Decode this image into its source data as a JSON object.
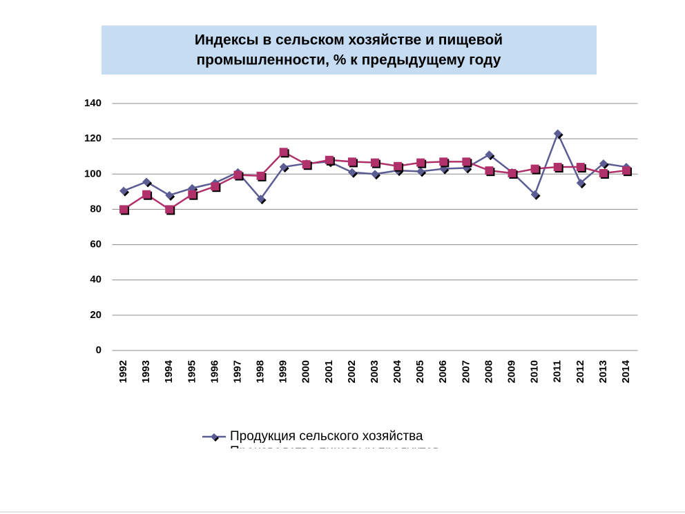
{
  "chart_data": {
    "type": "line",
    "title": [
      "Индексы в сельском хозяйстве и пищевой",
      "промышленности, % к предыдущему году"
    ],
    "categories": [
      "1992",
      "1993",
      "1994",
      "1995",
      "1996",
      "1997",
      "1998",
      "1999",
      "2000",
      "2001",
      "2002",
      "2003",
      "2004",
      "2005",
      "2006",
      "2007",
      "2008",
      "2009",
      "2010",
      "2011",
      "2012",
      "2013",
      "2014"
    ],
    "series": [
      {
        "name": "Продукция сельского хозяйства",
        "color": "#5c5c94",
        "marker": "diamond",
        "values": [
          90.5,
          95.6,
          88,
          92,
          95,
          101,
          86,
          104,
          106,
          107,
          101,
          100,
          102,
          101.5,
          103,
          103.5,
          111,
          101,
          88.5,
          123,
          95,
          106,
          104
        ]
      },
      {
        "name": "Производство пищевых продуктов",
        "color": "#b0306a",
        "marker": "square",
        "values": [
          80,
          88.5,
          80,
          88.5,
          93,
          99.5,
          99,
          112.5,
          105.5,
          108,
          107,
          106.5,
          104.5,
          106.5,
          107,
          107,
          102,
          100.5,
          103,
          104,
          104,
          100.5,
          102
        ]
      }
    ],
    "ylim": [
      0,
      140
    ],
    "yticks": [
      0,
      20,
      40,
      60,
      80,
      100,
      120,
      140
    ],
    "grid": true,
    "legend": "bottom"
  }
}
